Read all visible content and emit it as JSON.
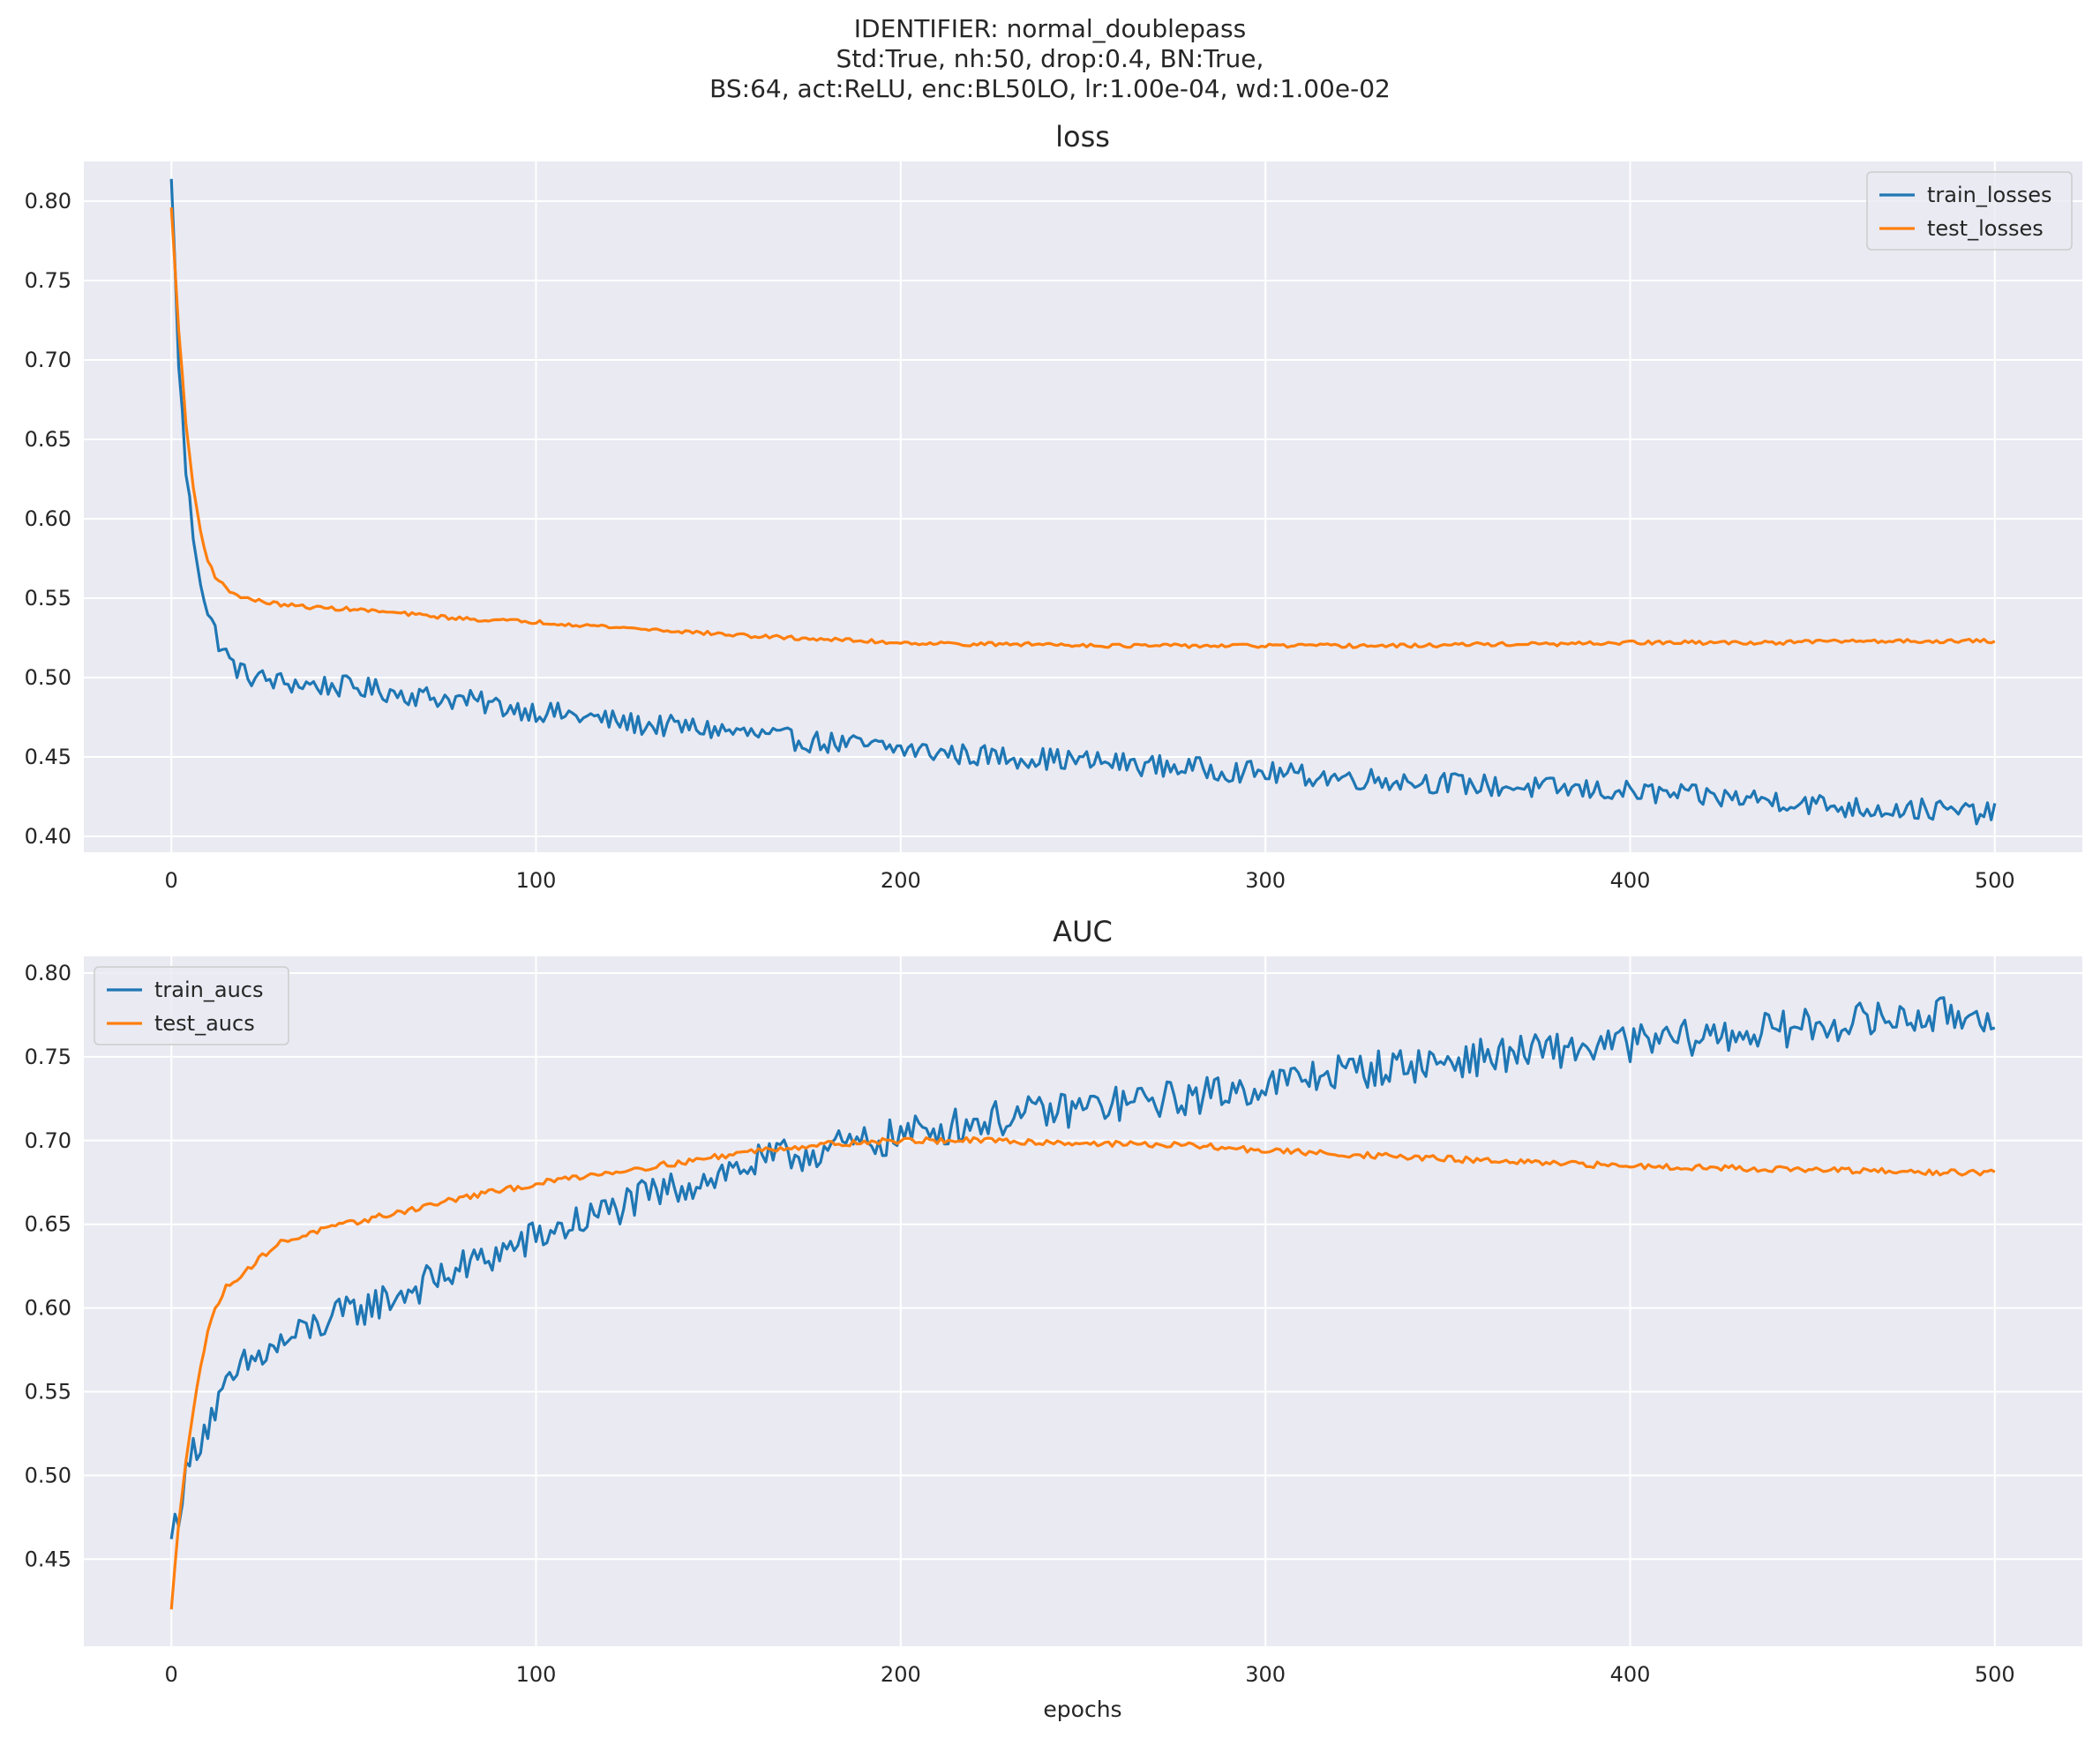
{
  "suptitle": [
    "IDENTIFIER: normal_doublepass",
    "Std:True, nh:50, drop:0.4, BN:True,",
    "BS:64, act:ReLU, enc:BL50LO, lr:1.00e-04, wd:1.00e-02"
  ],
  "colors": {
    "blue": "#1f77b4",
    "orange": "#ff7f0e",
    "background": "#eaeaf2",
    "grid": "#ffffff"
  },
  "chart_data": [
    {
      "type": "line",
      "title": "loss",
      "xlabel": "",
      "ylabel": "",
      "xlim": [
        -24,
        524
      ],
      "ylim": [
        0.39,
        0.825
      ],
      "xticks": [
        0,
        100,
        200,
        300,
        400,
        500
      ],
      "yticks": [
        0.4,
        0.45,
        0.5,
        0.55,
        0.6,
        0.65,
        0.7,
        0.75,
        0.8
      ],
      "grid": true,
      "legend": "top-right",
      "series": [
        {
          "name": "train_losses",
          "color": "#1f77b4",
          "x": [
            0,
            2,
            4,
            6,
            8,
            10,
            13,
            16,
            20,
            25,
            30,
            40,
            50,
            60,
            70,
            80,
            90,
            100,
            110,
            120,
            130,
            140,
            150,
            160,
            170,
            180,
            190,
            200,
            220,
            240,
            260,
            280,
            300,
            320,
            340,
            360,
            380,
            400,
            420,
            440,
            460,
            480,
            500
          ],
          "y": [
            0.814,
            0.7,
            0.63,
            0.59,
            0.563,
            0.54,
            0.523,
            0.51,
            0.502,
            0.499,
            0.497,
            0.495,
            0.494,
            0.491,
            0.488,
            0.486,
            0.482,
            0.479,
            0.476,
            0.473,
            0.47,
            0.469,
            0.467,
            0.464,
            0.461,
            0.459,
            0.457,
            0.455,
            0.451,
            0.449,
            0.446,
            0.443,
            0.44,
            0.437,
            0.435,
            0.432,
            0.43,
            0.428,
            0.425,
            0.423,
            0.418,
            0.417,
            0.414
          ],
          "noise": 0.007
        },
        {
          "name": "test_losses",
          "color": "#ff7f0e",
          "x": [
            0,
            2,
            4,
            6,
            8,
            10,
            12,
            15,
            18,
            22,
            30,
            40,
            50,
            60,
            70,
            80,
            90,
            100,
            120,
            140,
            160,
            180,
            200,
            220,
            240,
            260,
            280,
            300,
            320,
            340,
            360,
            380,
            400,
            420,
            440,
            460,
            480,
            500
          ],
          "y": [
            0.796,
            0.72,
            0.66,
            0.62,
            0.592,
            0.574,
            0.564,
            0.556,
            0.552,
            0.549,
            0.546,
            0.544,
            0.543,
            0.541,
            0.539,
            0.537,
            0.536,
            0.535,
            0.532,
            0.529,
            0.526,
            0.524,
            0.522,
            0.521,
            0.521,
            0.52,
            0.52,
            0.52,
            0.52,
            0.52,
            0.521,
            0.521,
            0.522,
            0.522,
            0.522,
            0.523,
            0.523,
            0.523
          ],
          "noise": 0.0012
        }
      ]
    },
    {
      "type": "line",
      "title": "AUC",
      "xlabel": "epochs",
      "ylabel": "",
      "xlim": [
        -24,
        524
      ],
      "ylim": [
        0.398,
        0.81
      ],
      "xticks": [
        0,
        100,
        200,
        300,
        400,
        500
      ],
      "yticks": [
        0.45,
        0.5,
        0.55,
        0.6,
        0.65,
        0.7,
        0.75,
        0.8
      ],
      "grid": true,
      "legend": "top-left",
      "series": [
        {
          "name": "train_aucs",
          "color": "#1f77b4",
          "x": [
            0,
            3,
            6,
            10,
            15,
            20,
            30,
            40,
            50,
            60,
            70,
            80,
            90,
            100,
            110,
            120,
            130,
            140,
            150,
            160,
            170,
            180,
            190,
            200,
            220,
            240,
            260,
            280,
            300,
            320,
            340,
            360,
            380,
            400,
            420,
            440,
            460,
            480,
            500
          ],
          "y": [
            0.462,
            0.49,
            0.515,
            0.532,
            0.55,
            0.565,
            0.578,
            0.59,
            0.598,
            0.606,
            0.615,
            0.624,
            0.633,
            0.642,
            0.65,
            0.658,
            0.666,
            0.673,
            0.68,
            0.686,
            0.691,
            0.695,
            0.698,
            0.703,
            0.711,
            0.717,
            0.722,
            0.726,
            0.733,
            0.741,
            0.745,
            0.75,
            0.754,
            0.758,
            0.762,
            0.766,
            0.771,
            0.774,
            0.776
          ],
          "noise": 0.011
        },
        {
          "name": "test_aucs",
          "color": "#ff7f0e",
          "x": [
            0,
            2,
            4,
            6,
            8,
            10,
            12,
            15,
            18,
            22,
            26,
            30,
            40,
            50,
            60,
            70,
            80,
            90,
            100,
            110,
            120,
            140,
            160,
            180,
            200,
            220,
            240,
            260,
            280,
            300,
            320,
            340,
            360,
            380,
            400,
            420,
            440,
            460,
            480,
            500
          ],
          "y": [
            0.42,
            0.47,
            0.51,
            0.54,
            0.565,
            0.585,
            0.6,
            0.612,
            0.618,
            0.625,
            0.633,
            0.639,
            0.646,
            0.651,
            0.656,
            0.661,
            0.666,
            0.67,
            0.674,
            0.678,
            0.681,
            0.687,
            0.694,
            0.698,
            0.7,
            0.7,
            0.699,
            0.698,
            0.697,
            0.694,
            0.692,
            0.69,
            0.688,
            0.686,
            0.685,
            0.684,
            0.683,
            0.682,
            0.681,
            0.681
          ],
          "noise": 0.0018
        }
      ]
    }
  ]
}
